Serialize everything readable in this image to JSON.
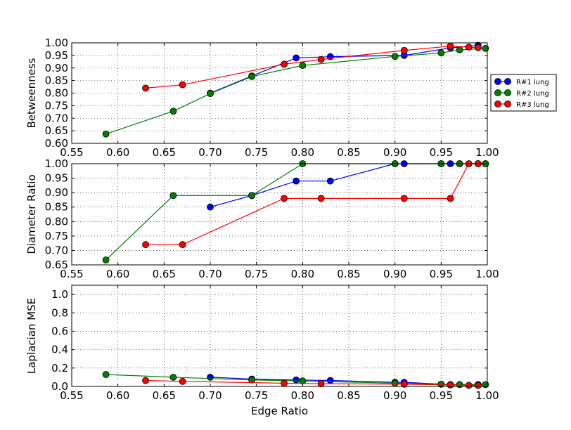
{
  "chart_data": [
    {
      "type": "line",
      "title": "",
      "xlabel": "",
      "ylabel": "Betweenness",
      "xlim": [
        0.55,
        1.0
      ],
      "ylim": [
        0.6,
        1.0
      ],
      "xticks": [
        "0.55",
        "0.60",
        "0.65",
        "0.70",
        "0.75",
        "0.80",
        "0.85",
        "0.90",
        "0.95",
        "1.00"
      ],
      "yticks": [
        "0.60",
        "0.65",
        "0.70",
        "0.75",
        "0.80",
        "0.85",
        "0.90",
        "0.95",
        "1.00"
      ],
      "grid": true,
      "legend": "right",
      "series": [
        {
          "name": "R#1 lung",
          "color": "#0000ff",
          "x": [
            0.7,
            0.745,
            0.793,
            0.83,
            0.91,
            0.96,
            0.99
          ],
          "y": [
            0.8,
            0.868,
            0.94,
            0.945,
            0.95,
            0.98,
            0.99
          ]
        },
        {
          "name": "R#2 lung",
          "color": "#008000",
          "x": [
            0.587,
            0.66,
            0.7,
            0.745,
            0.8,
            0.9,
            0.95,
            0.97,
            0.998
          ],
          "y": [
            0.637,
            0.728,
            0.798,
            0.866,
            0.91,
            0.946,
            0.96,
            0.972,
            0.978
          ]
        },
        {
          "name": "R#3 lung",
          "color": "#ff0000",
          "x": [
            0.63,
            0.67,
            0.78,
            0.82,
            0.91,
            0.96,
            0.98,
            0.99
          ],
          "y": [
            0.82,
            0.833,
            0.915,
            0.934,
            0.97,
            0.987,
            0.983,
            0.981
          ]
        }
      ]
    },
    {
      "type": "line",
      "title": "",
      "xlabel": "",
      "ylabel": "Diameter Ratio",
      "xlim": [
        0.55,
        1.0
      ],
      "ylim": [
        0.65,
        1.0
      ],
      "xticks": [
        "0.55",
        "0.60",
        "0.65",
        "0.70",
        "0.75",
        "0.80",
        "0.85",
        "0.90",
        "0.95",
        "1.00"
      ],
      "yticks": [
        "0.65",
        "0.70",
        "0.75",
        "0.80",
        "0.85",
        "0.90",
        "0.95",
        "1.00"
      ],
      "grid": true,
      "series": [
        {
          "name": "R#1 lung",
          "color": "#0000ff",
          "x": [
            0.7,
            0.745,
            0.793,
            0.83,
            0.9,
            0.91,
            0.95,
            0.96,
            0.97,
            0.99,
            0.998
          ],
          "y": [
            0.85,
            0.89,
            0.94,
            0.94,
            1.0,
            1.0,
            1.0,
            1.0,
            1.0,
            1.0,
            1.0
          ]
        },
        {
          "name": "R#2 lung",
          "color": "#008000",
          "x": [
            0.587,
            0.66,
            0.745,
            0.8,
            0.9,
            0.95,
            0.97,
            0.998
          ],
          "y": [
            0.667,
            0.89,
            0.89,
            1.0,
            1.0,
            1.0,
            1.0,
            1.0
          ]
        },
        {
          "name": "R#3 lung",
          "color": "#ff0000",
          "x": [
            0.63,
            0.67,
            0.78,
            0.82,
            0.91,
            0.96,
            0.98,
            0.99
          ],
          "y": [
            0.72,
            0.72,
            0.88,
            0.88,
            0.88,
            0.88,
            1.0,
            1.0
          ]
        }
      ]
    },
    {
      "type": "line",
      "title": "",
      "xlabel": "Edge Ratio",
      "ylabel": "Laplacian MSE",
      "xlim": [
        0.55,
        1.0
      ],
      "ylim": [
        0.0,
        1.1
      ],
      "xticks": [
        "0.55",
        "0.60",
        "0.65",
        "0.70",
        "0.75",
        "0.80",
        "0.85",
        "0.90",
        "0.95",
        "1.00"
      ],
      "yticks": [
        "0.0",
        "0.2",
        "0.4",
        "0.6",
        "0.8",
        "1.0"
      ],
      "grid": true,
      "series": [
        {
          "name": "R#1 lung",
          "color": "#0000ff",
          "x": [
            0.7,
            0.745,
            0.793,
            0.83,
            0.9,
            0.91,
            0.95,
            0.96,
            0.99
          ],
          "y": [
            0.1,
            0.08,
            0.07,
            0.065,
            0.045,
            0.045,
            0.025,
            0.02,
            0.02
          ]
        },
        {
          "name": "R#2 lung",
          "color": "#008000",
          "x": [
            0.587,
            0.66,
            0.745,
            0.8,
            0.9,
            0.95,
            0.97,
            0.998
          ],
          "y": [
            0.13,
            0.1,
            0.07,
            0.06,
            0.035,
            0.025,
            0.02,
            0.02
          ]
        },
        {
          "name": "R#3 lung",
          "color": "#ff0000",
          "x": [
            0.63,
            0.67,
            0.78,
            0.82,
            0.91,
            0.96,
            0.98,
            0.99
          ],
          "y": [
            0.065,
            0.055,
            0.035,
            0.03,
            0.025,
            0.015,
            0.012,
            0.01
          ]
        }
      ]
    }
  ]
}
